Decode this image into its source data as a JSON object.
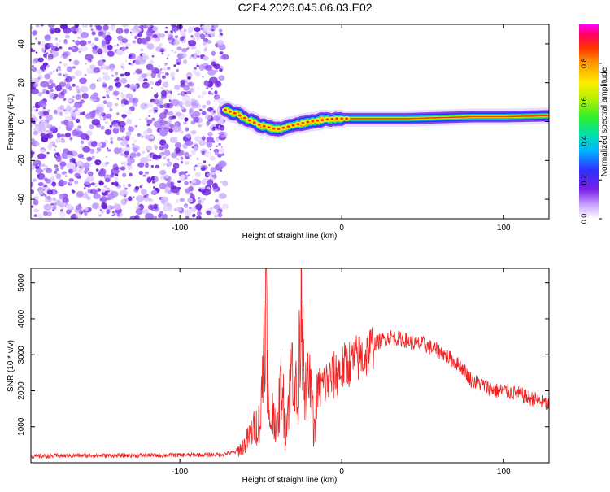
{
  "title": "C2E4.2026.045.06.03.E02",
  "chart_data": [
    {
      "type": "heatmap",
      "xlabel": "Height of straight line (km)",
      "ylabel": "Frequency (Hz)",
      "xlim": [
        -192,
        128
      ],
      "ylim": [
        -50,
        50
      ],
      "xticks": [
        -100,
        0,
        100
      ],
      "yticks": [
        -40,
        -20,
        0,
        20,
        40
      ],
      "noise_region_x": [
        -192,
        -72
      ],
      "ridge": {
        "x": [
          -72,
          -65,
          -58,
          -50,
          -45,
          -40,
          -35,
          -30,
          -25,
          -20,
          -15,
          -10,
          -5,
          0,
          10,
          20,
          40,
          60,
          80,
          100,
          128
        ],
        "y": [
          6,
          4,
          1,
          -2,
          -3,
          -4,
          -3,
          -2,
          -1,
          0,
          0.5,
          1,
          1.5,
          1.5,
          1.5,
          1.5,
          1.5,
          2,
          2.5,
          2.5,
          3
        ]
      },
      "colorbar": {
        "label": "Normalized spectral amplitude",
        "range": [
          0,
          1
        ],
        "ticks": [
          "0.0",
          "0.2",
          "0.4",
          "0.6",
          "0.8"
        ],
        "colors": [
          "#ffffff",
          "#c9a6ff",
          "#7a1fe6",
          "#2f2fff",
          "#00b4ff",
          "#00e0b0",
          "#2eee2e",
          "#b8f000",
          "#ffee00",
          "#ff9900",
          "#ff3300",
          "#ff0066",
          "#ff00ff"
        ]
      }
    },
    {
      "type": "line",
      "xlabel": "Height of straight line (km)",
      "ylabel": "SNR (10 * v/v)",
      "xlim": [
        -192,
        128
      ],
      "ylim": [
        0,
        5400
      ],
      "xticks": [
        -100,
        0,
        100
      ],
      "yticks": [
        1000,
        2000,
        3000,
        4000,
        5000
      ],
      "line_color": "#ee2222",
      "series": [
        {
          "name": "SNR",
          "x": [
            -192,
            -160,
            -130,
            -100,
            -75,
            -65,
            -60,
            -55,
            -50,
            -47,
            -45,
            -42,
            -40,
            -37,
            -35,
            -30,
            -27,
            -25,
            -22,
            -20,
            -17,
            -15,
            -10,
            -5,
            0,
            5,
            10,
            15,
            20,
            25,
            30,
            35,
            40,
            45,
            50,
            60,
            70,
            75,
            80,
            85,
            90,
            95,
            100,
            105,
            110,
            115,
            120,
            128
          ],
          "y": [
            180,
            200,
            200,
            210,
            230,
            300,
            500,
            900,
            1200,
            5000,
            1000,
            1500,
            900,
            2500,
            800,
            3000,
            1200,
            5400,
            1500,
            2500,
            800,
            2000,
            2200,
            2400,
            2600,
            2800,
            2900,
            3000,
            3300,
            3400,
            3500,
            3450,
            3400,
            3300,
            3300,
            3100,
            2800,
            2600,
            2300,
            2200,
            2100,
            2000,
            2000,
            1950,
            1900,
            1800,
            1750,
            1600
          ]
        }
      ]
    }
  ]
}
